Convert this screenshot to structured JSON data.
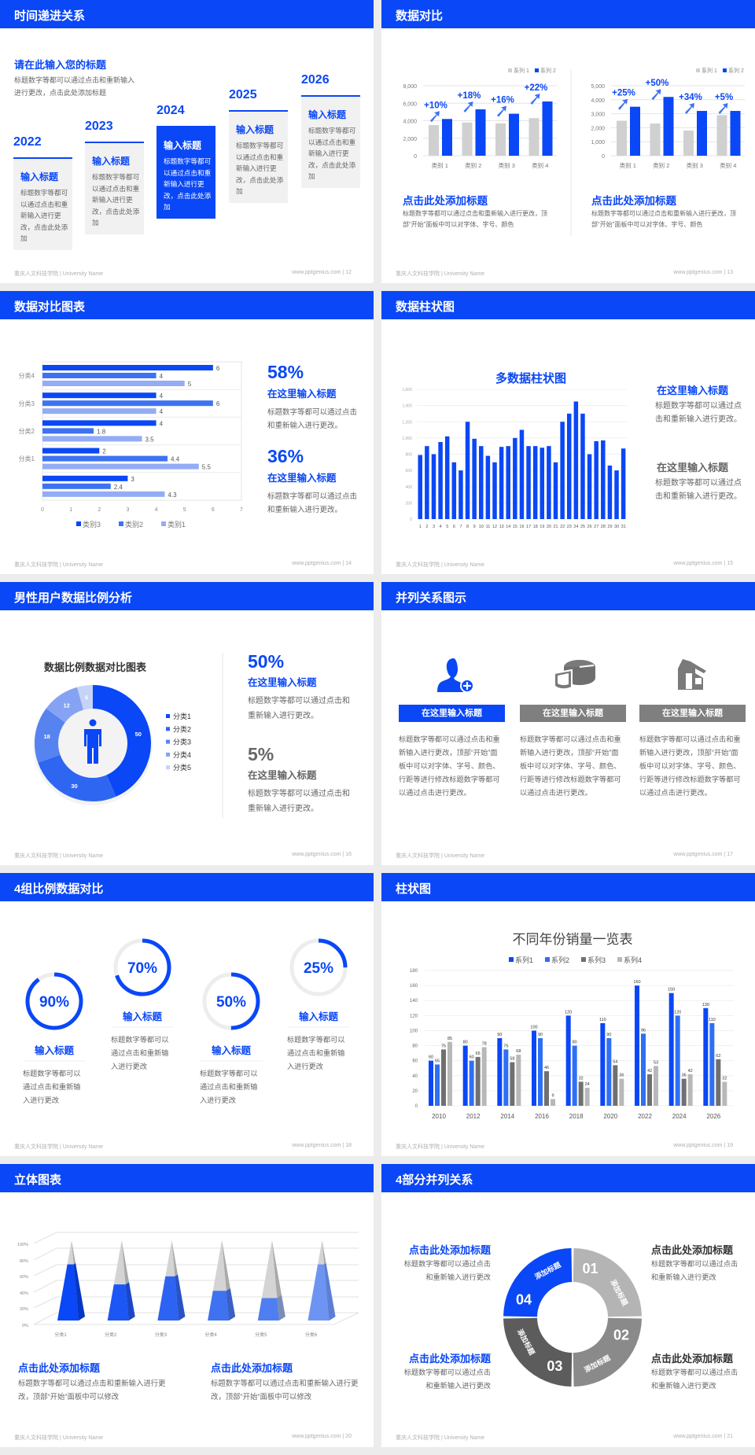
{
  "colors": {
    "primary": "#0a47f6",
    "grey_bar": "#d0d0d0",
    "dark_grey": "#707070",
    "light_grey": "#b8b8b8"
  },
  "footer": {
    "school": "重庆人文科技学院 | University Name",
    "site": "www.pptgenius.com"
  },
  "s12": {
    "page": "12",
    "title": "时间递进关系",
    "heading": "请在此输入您的标题",
    "desc": "标题数字等都可以通过点击和重新输入进行更改，点击此处添加标题",
    "steps": [
      {
        "year": "2022",
        "title": "输入标题",
        "text": "标题数字等都可以通过点击和重新输入进行更改，点击此处添加"
      },
      {
        "year": "2023",
        "title": "输入标题",
        "text": "标题数字等都可以通过点击和重新输入进行更改，点击此处添加"
      },
      {
        "year": "2024",
        "title": "输入标题",
        "text": "标题数字等都可以通过点击和重新输入进行更改，点击此处添加"
      },
      {
        "year": "2025",
        "title": "输入标题",
        "text": "标题数字等都可以通过点击和重新输入进行更改，点击此处添加"
      },
      {
        "year": "2026",
        "title": "输入标题",
        "text": "标题数字等都可以通过点击和重新输入进行更改，点击此处添加"
      }
    ]
  },
  "s13": {
    "page": "13",
    "title": "数据对比",
    "blocks": [
      {
        "heading": "点击此处添加标题",
        "text": "标题数字等都可以通过点击和重新输入进行更改，顶部“开始”面板中可以对字体、字号、颜色"
      },
      {
        "heading": "点击此处添加标题",
        "text": "标题数字等都可以通过点击和重新输入进行更改，顶部“开始”面板中可以对字体、字号、颜色"
      }
    ]
  },
  "s14": {
    "page": "14",
    "title": "数据对比图表",
    "stats": [
      {
        "value": "58%",
        "heading": "在这里输入标题",
        "text": "标题数字等都可以通过点击和重新输入进行更改。"
      },
      {
        "value": "36%",
        "heading": "在这里输入标题",
        "text": "标题数字等都可以通过点击和重新输入进行更改。"
      }
    ]
  },
  "s15": {
    "page": "15",
    "title": "数据柱状图",
    "blocks": [
      {
        "heading": "在这里输入标题",
        "text": "标题数字等都可以通过点击和重新输入进行更改。"
      },
      {
        "heading": "在这里输入标题",
        "text": "标题数字等都可以通过点击和重新输入进行更改。"
      }
    ]
  },
  "s16": {
    "page": "16",
    "title": "男性用户数据比例分析",
    "stats": [
      {
        "value": "50%",
        "heading": "在这里输入标题",
        "text": "标题数字等都可以通过点击和重新输入进行更改。"
      },
      {
        "value": "5%",
        "heading": "在这里输入标题",
        "text": "标题数字等都可以通过点击和重新输入进行更改。"
      }
    ]
  },
  "s17": {
    "page": "17",
    "title": "并列关系图示",
    "items": [
      {
        "icon": "user-add-icon",
        "label": "在这里输入标题",
        "text": "标题数字等都可以通过点击和重新输入进行更改，顶部“开始”面板中可以对字体、字号、颜色、行距等进行修改标题数字等都可以通过点击进行更改。"
      },
      {
        "icon": "pie-chart-3d-icon",
        "label": "在这里输入标题",
        "text": "标题数字等都可以通过点击和重新输入进行更改，顶部“开始”面板中可以对字体、字号、颜色、行距等进行修改标题数字等都可以通过点击进行更改。"
      },
      {
        "icon": "storefront-icon",
        "label": "在这里输入标题",
        "text": "标题数字等都可以通过点击和重新输入进行更改，顶部“开始”面板中可以对字体、字号、颜色、行距等进行修改标题数字等都可以通过点击进行更改。"
      }
    ]
  },
  "s18": {
    "page": "18",
    "title": "4组比例数据对比",
    "items": [
      {
        "value": "90%",
        "percent": 90,
        "heading": "输入标题",
        "text": "标题数字等都可以通过点击和重新输入进行更改"
      },
      {
        "value": "70%",
        "percent": 70,
        "heading": "输入标题",
        "text": "标题数字等都可以通过点击和重新输入进行更改"
      },
      {
        "value": "50%",
        "percent": 50,
        "heading": "输入标题",
        "text": "标题数字等都可以通过点击和重新输入进行更改"
      },
      {
        "value": "25%",
        "percent": 25,
        "heading": "输入标题",
        "text": "标题数字等都可以通过点击和重新输入进行更改"
      }
    ]
  },
  "s19": {
    "page": "19",
    "title": "柱状图"
  },
  "s20": {
    "page": "20",
    "title": "立体图表",
    "blocks": [
      {
        "heading": "点击此处添加标题",
        "text": "标题数字等都可以通过点击和重新输入进行更改，顶部“开始”面板中可以修改"
      },
      {
        "heading": "点击此处添加标题",
        "text": "标题数字等都可以通过点击和重新输入进行更改，顶部“开始”面板中可以修改"
      }
    ]
  },
  "s21": {
    "page": "21",
    "title": "4部分并列关系",
    "segments": [
      {
        "number": "01",
        "label": "添加标题"
      },
      {
        "number": "02",
        "label": "添加标题"
      },
      {
        "number": "03",
        "label": "添加标题"
      },
      {
        "number": "04",
        "label": "添加标题"
      }
    ],
    "blocks": [
      {
        "heading": "点击此处添加标题",
        "text": "标题数字等都可以通过点击和重新输入进行更改"
      },
      {
        "heading": "点击此处添加标题",
        "text": "标题数字等都可以通过点击和重新输入进行更改"
      },
      {
        "heading": "点击此处添加标题",
        "text": "标题数字等都可以通过点击和重新输入进行更改"
      },
      {
        "heading": "点击此处添加标题",
        "text": "标题数字等都可以通过点击和重新输入进行更改"
      }
    ]
  },
  "chart_data": [
    {
      "type": "bar",
      "categories": [
        "类别 1",
        "类别 2",
        "类别 3",
        "类别 4"
      ],
      "series": [
        {
          "name": "系列 1",
          "values": [
            3500,
            3800,
            3700,
            4300
          ],
          "color": "#d0d0d0"
        },
        {
          "name": "系列 2",
          "values": [
            4200,
            5300,
            4800,
            6200
          ],
          "color": "#0a47f6"
        }
      ],
      "annotations": [
        "+10%",
        "+18%",
        "+16%",
        "+22%"
      ],
      "ylim": [
        0,
        8000
      ],
      "yticks": [
        "0",
        "2,000",
        "4,000",
        "6,000",
        "8,000"
      ],
      "grid": true,
      "legend": "top-right"
    },
    {
      "type": "bar",
      "categories": [
        "类别 1",
        "类别 2",
        "类别 3",
        "类别 4"
      ],
      "series": [
        {
          "name": "系列 1",
          "values": [
            2500,
            2300,
            1800,
            2900
          ],
          "color": "#d0d0d0"
        },
        {
          "name": "系列 2",
          "values": [
            3500,
            4200,
            3200,
            3200
          ],
          "color": "#0a47f6"
        }
      ],
      "annotations": [
        "+25%",
        "+50%",
        "+34%",
        "+5%"
      ],
      "ylim": [
        0,
        5000
      ],
      "yticks": [
        "0",
        "1,000",
        "2,000",
        "3,000",
        "4,000",
        "5,000"
      ],
      "grid": true,
      "legend": "top-right"
    },
    {
      "type": "bar",
      "orientation": "horizontal",
      "categories": [
        "",
        "分类1",
        "分类2",
        "分类3",
        "分类4"
      ],
      "series": [
        {
          "name": "类别1",
          "values": [
            4.3,
            5.5,
            3.5,
            4,
            5
          ],
          "color": "#93acf5"
        },
        {
          "name": "类别2",
          "values": [
            2.4,
            4.4,
            1.8,
            6,
            4
          ],
          "color": "#3d72f2"
        },
        {
          "name": "类别3",
          "values": [
            3,
            2,
            4,
            4,
            6
          ],
          "color": "#0a47f6"
        }
      ],
      "legend_order": [
        "类别3",
        "类别2",
        "类别1"
      ],
      "xlim": [
        0,
        7
      ],
      "xticks": [
        "0",
        "1",
        "2",
        "3",
        "4",
        "5",
        "6",
        "7"
      ],
      "grid": true,
      "legend": "bottom"
    },
    {
      "type": "bar",
      "title": "多数据柱状图",
      "categories": [
        "1",
        "2",
        "3",
        "4",
        "5",
        "6",
        "7",
        "8",
        "9",
        "10",
        "11",
        "12",
        "13",
        "14",
        "15",
        "16",
        "17",
        "18",
        "19",
        "20",
        "21",
        "22",
        "23",
        "24",
        "25",
        "26",
        "27",
        "28",
        "29",
        "30",
        "31"
      ],
      "values": [
        790,
        900,
        800,
        950,
        1020,
        700,
        600,
        1200,
        990,
        900,
        780,
        700,
        890,
        900,
        1000,
        1100,
        900,
        900,
        880,
        900,
        700,
        1200,
        1300,
        1450,
        1300,
        800,
        960,
        970,
        660,
        600,
        870
      ],
      "ylim": [
        0,
        1600
      ],
      "yticks": [
        "0",
        "200",
        "400",
        "600",
        "800",
        "1,000",
        "1,200",
        "1,400",
        "1,600"
      ],
      "grid": true
    },
    {
      "type": "pie",
      "variant": "donut",
      "title": "数据比例数据对比图表",
      "categories": [
        "分类1",
        "分类2",
        "分类3",
        "分类4",
        "分类5"
      ],
      "values": [
        50,
        30,
        18,
        12,
        5
      ],
      "labels": [
        "50",
        "30",
        "18",
        "12",
        "5"
      ],
      "colors": [
        "#0a47f6",
        "#2e66f2",
        "#5683f0",
        "#85a3f2",
        "#c5d3f7"
      ],
      "legend": "right"
    },
    {
      "type": "bar",
      "title": "不同年份销量一览表",
      "categories": [
        "2010",
        "2012",
        "2014",
        "2016",
        "2018",
        "2020",
        "2022",
        "2024",
        "2026"
      ],
      "series": [
        {
          "name": "系列1",
          "values": [
            60,
            80,
            90,
            100,
            120,
            110,
            160,
            150,
            130
          ],
          "color": "#0a47f6"
        },
        {
          "name": "系列2",
          "values": [
            55,
            60,
            75,
            90,
            80,
            90,
            96,
            120,
            110
          ],
          "color": "#2e6ff5"
        },
        {
          "name": "系列3",
          "values": [
            75,
            65,
            58,
            46,
            32,
            54,
            42,
            36,
            62
          ],
          "color": "#707070"
        },
        {
          "name": "系列4",
          "values": [
            85,
            78,
            68,
            9,
            24,
            36,
            53,
            42,
            32
          ],
          "color": "#b8b8b8"
        }
      ],
      "ylim": [
        0,
        180
      ],
      "yticks": [
        "0",
        "20",
        "40",
        "60",
        "80",
        "100",
        "120",
        "140",
        "160",
        "180"
      ],
      "grid": true,
      "legend": "top"
    },
    {
      "type": "bar",
      "variant": "3d-pyramid",
      "categories": [
        "分类1",
        "分类2",
        "分类3",
        "分类4",
        "分类5",
        "分类6"
      ],
      "values": [
        70,
        45,
        55,
        37,
        28,
        70
      ],
      "ylim": [
        0,
        100
      ],
      "yticks": [
        "0%",
        "20%",
        "40%",
        "60%",
        "80%",
        "100%"
      ],
      "grid": true
    }
  ]
}
